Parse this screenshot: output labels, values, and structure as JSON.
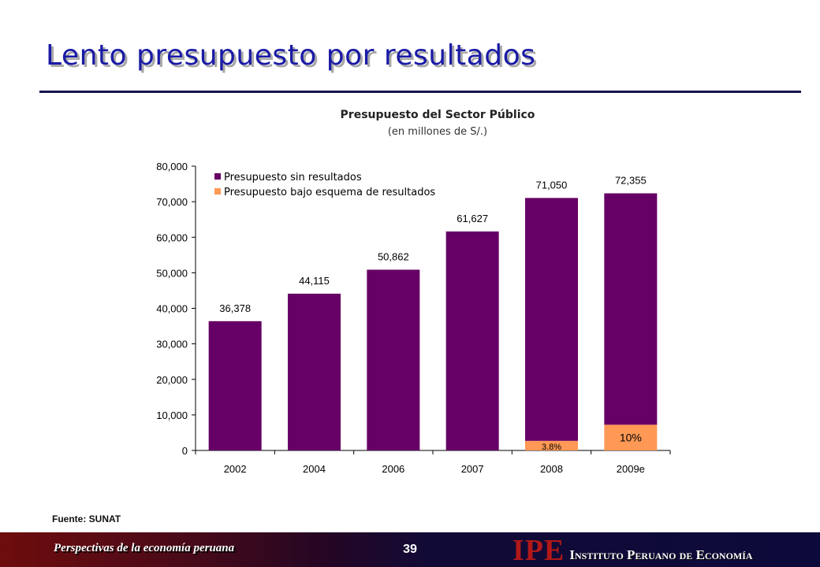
{
  "slide": {
    "title": "Lento presupuesto por resultados",
    "source": "Fuente: SUNAT",
    "page_number": "39",
    "footer_text": "Perspectivas de la economía peruana",
    "logo_mark": "IPE",
    "logo_text": "Instituto Peruano de Economía"
  },
  "colors": {
    "title": "#1a1aa6",
    "series_sin": "#660066",
    "series_bajo": "#ff9955",
    "footer_dark": "#0c0a3a"
  },
  "chart_data": {
    "type": "bar",
    "stacked": true,
    "title": "Presupuesto del Sector Público",
    "subtitle": "(en millones de S/.)",
    "categories": [
      "2002",
      "2004",
      "2006",
      "2007",
      "2008",
      "2009e"
    ],
    "series": [
      {
        "name": "Presupuesto sin resultados",
        "color": "#660066",
        "values": [
          36378,
          44115,
          50862,
          61627,
          68350,
          65120
        ]
      },
      {
        "name": "Presupuesto bajo esquema de resultados",
        "color": "#ff9955",
        "values": [
          0,
          0,
          0,
          0,
          2700,
          7235
        ]
      }
    ],
    "total_labels": [
      "36,378",
      "44,115",
      "50,862",
      "61,627",
      "71,050",
      "72,355"
    ],
    "segment_labels": [
      "",
      "",
      "",
      "",
      "3.8%",
      "10%"
    ],
    "yticks": [
      "0",
      "10,000",
      "20,000",
      "30,000",
      "40,000",
      "50,000",
      "60,000",
      "70,000",
      "80,000"
    ],
    "ylim": [
      0,
      80000
    ],
    "grid": false,
    "legend_position": "top-left"
  }
}
